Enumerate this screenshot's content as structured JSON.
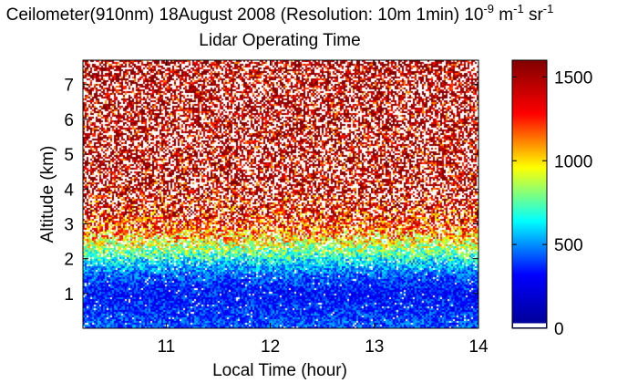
{
  "chart_data": {
    "type": "heatmap",
    "title": {
      "prefix": "Ceilometer(910nm) 18August 2008 (Resolution: 10m 1min) 10",
      "exp1": "-9",
      "mid": " m",
      "exp2": "-1",
      "mid2": " sr",
      "exp3": "-1",
      "subtitle": "Lidar Operating Time"
    },
    "xlabel": "Local Time (hour)",
    "ylabel": "Altitude (km)",
    "xlim": [
      10.2,
      14.0
    ],
    "ylim": [
      0.0,
      7.7
    ],
    "xticks": [
      11,
      12,
      13,
      14
    ],
    "yticks": [
      1,
      2,
      3,
      4,
      5,
      6,
      7
    ],
    "colorbar": {
      "range": [
        0,
        1600
      ],
      "ticks": [
        0,
        500,
        1000,
        1500
      ],
      "colormap": "jet",
      "colors": [
        "#00008f",
        "#0000ff",
        "#00ffff",
        "#ffff00",
        "#ff0000",
        "#800000"
      ]
    },
    "profile": [
      {
        "altitude_km": 0.1,
        "typical_value": 420
      },
      {
        "altitude_km": 0.5,
        "typical_value": 380
      },
      {
        "altitude_km": 1.0,
        "typical_value": 330
      },
      {
        "altitude_km": 1.5,
        "typical_value": 420
      },
      {
        "altitude_km": 2.0,
        "typical_value": 650
      },
      {
        "altitude_km": 2.5,
        "typical_value": 950
      },
      {
        "altitude_km": 3.0,
        "typical_value": 1250
      },
      {
        "altitude_km": 4.0,
        "typical_value": 1500
      },
      {
        "altitude_km": 7.7,
        "typical_value": 1550
      }
    ]
  }
}
